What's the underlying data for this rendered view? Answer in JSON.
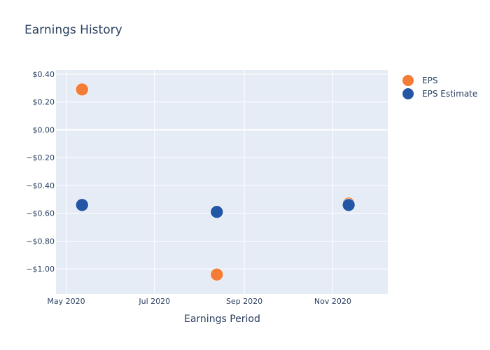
{
  "chart_data": {
    "type": "scatter",
    "title": "Earnings History",
    "xlabel": "Earnings Period",
    "ylabel": "",
    "x_tick_labels": [
      "May 2020",
      "Jul 2020",
      "Sep 2020",
      "Nov 2020"
    ],
    "y_tick_labels": [
      "$0.40",
      "$0.20",
      "$0.00",
      "−$0.20",
      "−$0.40",
      "−$0.60",
      "−$0.80",
      "−$1.00"
    ],
    "y_ticks": [
      0.4,
      0.2,
      0.0,
      -0.2,
      -0.4,
      -0.6,
      -0.8,
      -1.0
    ],
    "x_ticks": [
      "2020-05-01",
      "2020-07-01",
      "2020-09-01",
      "2020-11-01"
    ],
    "xlim": [
      "2020-04-24",
      "2020-12-09"
    ],
    "ylim": [
      -1.18,
      0.43
    ],
    "legend_position": "top-right",
    "grid": true,
    "series": [
      {
        "name": "EPS",
        "color": "#f47c36",
        "x": [
          "2020-05-12",
          "2020-08-13",
          "2020-11-12"
        ],
        "y": [
          0.29,
          -1.04,
          -0.53
        ]
      },
      {
        "name": "EPS Estimate",
        "color": "#2357a5",
        "x": [
          "2020-05-12",
          "2020-08-13",
          "2020-11-12"
        ],
        "y": [
          -0.54,
          -0.59,
          -0.54
        ]
      }
    ]
  }
}
